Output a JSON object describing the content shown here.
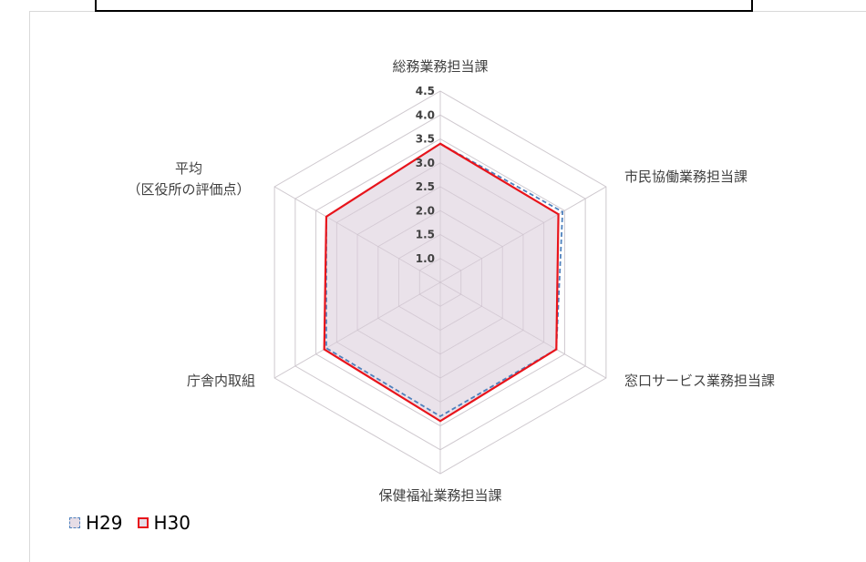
{
  "chart_data": {
    "type": "radar",
    "categories": [
      "総務業務担当課",
      "市民協働業務担当課",
      "窓口サービス業務担当課",
      "保健福祉業務担当課",
      "庁舎内取組",
      "平均\n（区役所の評価点）"
    ],
    "rlim": [
      0.5,
      4.5
    ],
    "ticks": [
      "1.0",
      "1.5",
      "2.0",
      "2.5",
      "3.0",
      "3.5",
      "4.0",
      "4.5"
    ],
    "series": [
      {
        "name": "H29",
        "values": [
          3.4,
          3.45,
          3.3,
          3.3,
          3.25,
          3.25
        ],
        "color": "#4f81bd",
        "style": "dashed"
      },
      {
        "name": "H30",
        "values": [
          3.4,
          3.35,
          3.3,
          3.4,
          3.3,
          3.25
        ],
        "color": "#e8141b",
        "style": "solid"
      }
    ],
    "fill_color": "#e6dde6",
    "grid": true,
    "legend_position": "bottom-left"
  }
}
